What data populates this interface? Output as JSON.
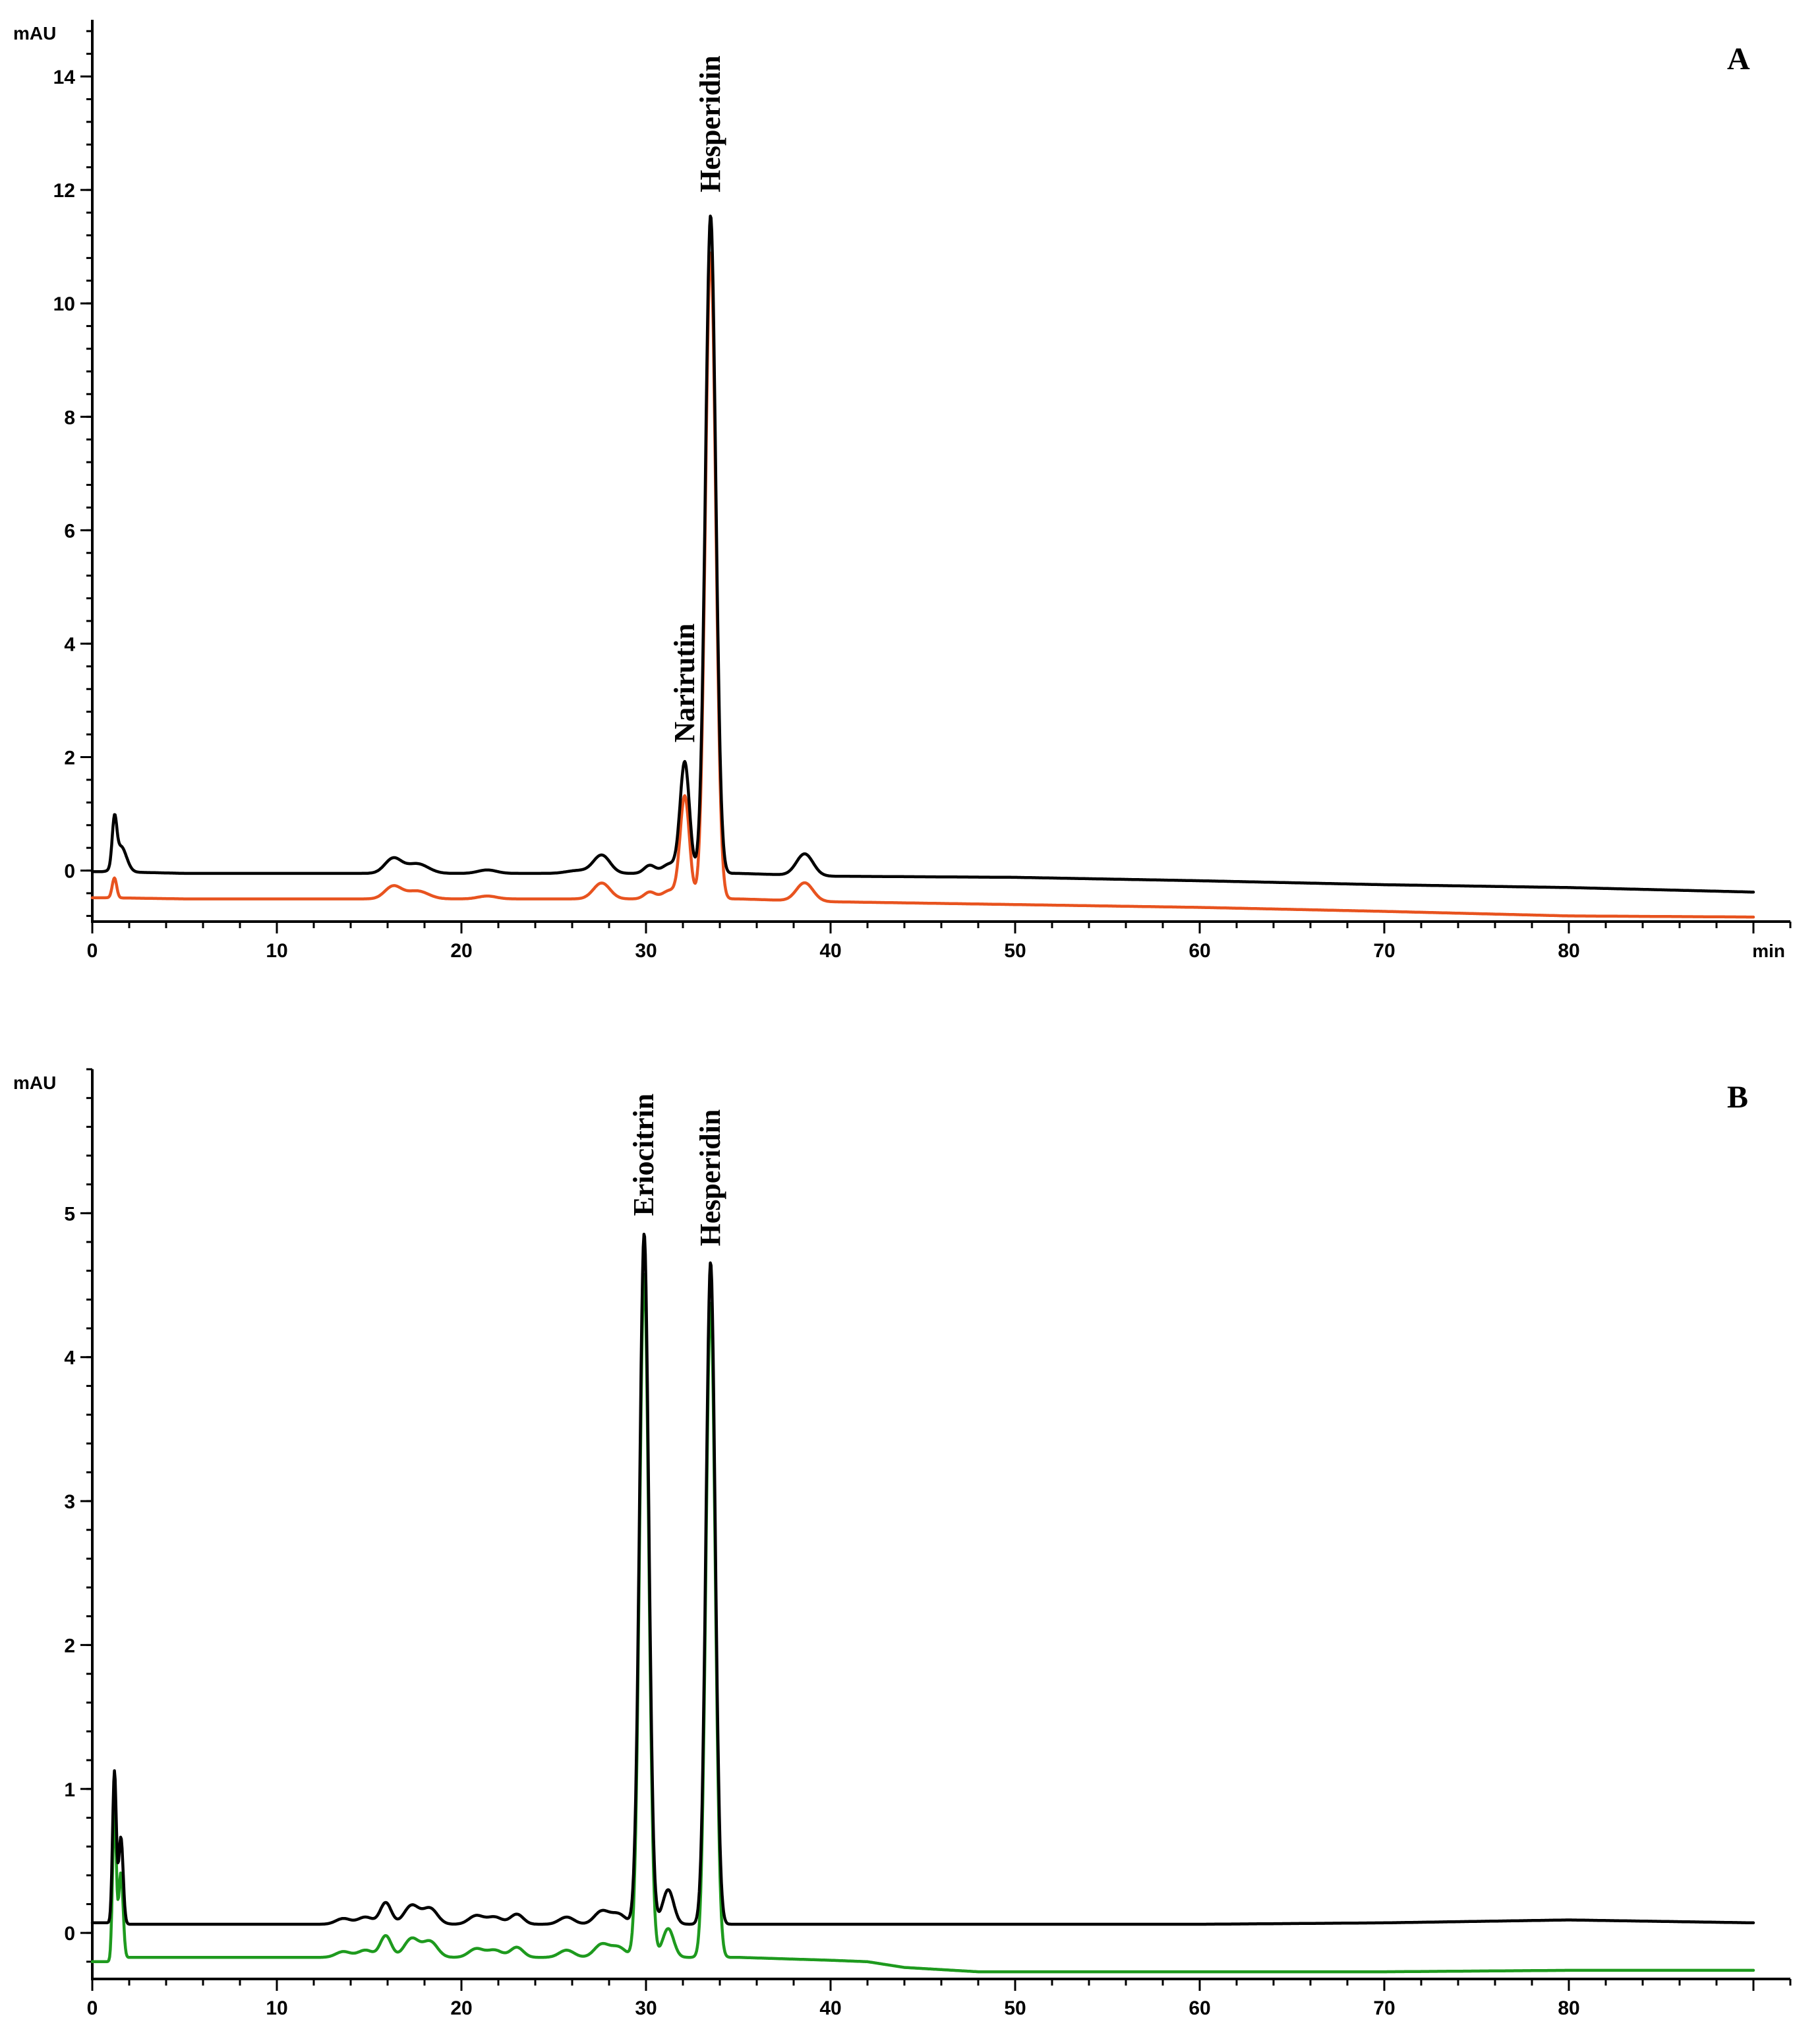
{
  "chart_data": [
    {
      "type": "line",
      "panel_label": "A",
      "xlabel": "min",
      "ylabel": "mAU",
      "xlim": [
        0,
        92
      ],
      "ylim": [
        -0.9,
        15
      ],
      "xticks": [
        0,
        10,
        20,
        30,
        40,
        50,
        60,
        70,
        80
      ],
      "yticks": [
        0,
        2,
        4,
        6,
        8,
        10,
        12,
        14
      ],
      "annotations": [
        {
          "text": "Narirutin",
          "x": 32.1,
          "y": 2.0
        },
        {
          "text": "Hesperidin",
          "x": 33.5,
          "y": 11.7
        }
      ],
      "series": [
        {
          "color": "#000000",
          "baseline": [
            [
              0,
              -0.02
            ],
            [
              1.0,
              -0.02
            ],
            [
              5,
              -0.05
            ],
            [
              10,
              -0.05
            ],
            [
              15,
              -0.05
            ],
            [
              20,
              -0.05
            ],
            [
              25,
              -0.05
            ],
            [
              30,
              -0.05
            ],
            [
              35,
              -0.05
            ],
            [
              40,
              -0.1
            ],
            [
              50,
              -0.12
            ],
            [
              60,
              -0.18
            ],
            [
              70,
              -0.25
            ],
            [
              80,
              -0.3
            ],
            [
              90,
              -0.38
            ]
          ],
          "peaks": [
            {
              "x": 1.2,
              "h": 0.78,
              "w": 0.12
            },
            {
              "x": 1.55,
              "h": 0.45,
              "w": 0.3
            },
            {
              "x": 16.3,
              "h": 0.26,
              "w": 0.45
            },
            {
              "x": 17.6,
              "h": 0.17,
              "w": 0.6
            },
            {
              "x": 21.4,
              "h": 0.06,
              "w": 0.5
            },
            {
              "x": 26.3,
              "h": 0.05,
              "w": 0.6
            },
            {
              "x": 27.6,
              "h": 0.32,
              "w": 0.45
            },
            {
              "x": 30.2,
              "h": 0.14,
              "w": 0.3
            },
            {
              "x": 31.3,
              "h": 0.17,
              "w": 0.4
            },
            {
              "x": 32.1,
              "h": 1.95,
              "w": 0.25
            },
            {
              "x": 33.5,
              "h": 11.6,
              "w": 0.28
            },
            {
              "x": 38.6,
              "h": 0.38,
              "w": 0.45
            }
          ]
        },
        {
          "color": "#e8531f",
          "baseline": [
            [
              0,
              -0.48
            ],
            [
              1.0,
              -0.48
            ],
            [
              5,
              -0.5
            ],
            [
              10,
              -0.5
            ],
            [
              15,
              -0.5
            ],
            [
              20,
              -0.5
            ],
            [
              25,
              -0.5
            ],
            [
              30,
              -0.5
            ],
            [
              35,
              -0.5
            ],
            [
              40,
              -0.55
            ],
            [
              50,
              -0.6
            ],
            [
              60,
              -0.65
            ],
            [
              70,
              -0.72
            ],
            [
              80,
              -0.8
            ],
            [
              90,
              -0.82
            ]
          ],
          "peaks": [
            {
              "x": 1.2,
              "h": 0.35,
              "w": 0.12
            },
            {
              "x": 16.3,
              "h": 0.22,
              "w": 0.45
            },
            {
              "x": 17.6,
              "h": 0.14,
              "w": 0.6
            },
            {
              "x": 21.4,
              "h": 0.05,
              "w": 0.5
            },
            {
              "x": 27.6,
              "h": 0.28,
              "w": 0.45
            },
            {
              "x": 30.2,
              "h": 0.12,
              "w": 0.3
            },
            {
              "x": 31.3,
              "h": 0.15,
              "w": 0.4
            },
            {
              "x": 32.1,
              "h": 1.8,
              "w": 0.25
            },
            {
              "x": 33.5,
              "h": 11.4,
              "w": 0.28
            },
            {
              "x": 38.6,
              "h": 0.32,
              "w": 0.45
            }
          ]
        }
      ]
    },
    {
      "type": "line",
      "panel_label": "B",
      "xlabel": "",
      "ylabel": "mAU",
      "xlim": [
        0,
        92
      ],
      "ylim": [
        -0.32,
        6.0
      ],
      "xticks": [
        0,
        10,
        20,
        30,
        40,
        50,
        60,
        70,
        80
      ],
      "yticks": [
        0,
        1,
        2,
        3,
        4,
        5
      ],
      "annotations": [
        {
          "text": "Eriocitrin",
          "x": 29.9,
          "y": 4.88
        },
        {
          "text": "Hesperidin",
          "x": 33.5,
          "y": 4.67
        }
      ],
      "series": [
        {
          "color": "#000000",
          "baseline": [
            [
              0,
              0.07
            ],
            [
              1.0,
              0.07
            ],
            [
              2,
              0.06
            ],
            [
              5,
              0.06
            ],
            [
              10,
              0.06
            ],
            [
              15,
              0.06
            ],
            [
              20,
              0.06
            ],
            [
              25,
              0.06
            ],
            [
              30,
              0.06
            ],
            [
              35,
              0.06
            ],
            [
              40,
              0.06
            ],
            [
              50,
              0.06
            ],
            [
              60,
              0.06
            ],
            [
              70,
              0.07
            ],
            [
              80,
              0.09
            ],
            [
              90,
              0.07
            ]
          ],
          "peaks": [
            {
              "x": 1.2,
              "h": 1.05,
              "w": 0.1
            },
            {
              "x": 1.55,
              "h": 0.6,
              "w": 0.12
            },
            {
              "x": 13.6,
              "h": 0.04,
              "w": 0.4
            },
            {
              "x": 14.8,
              "h": 0.05,
              "w": 0.4
            },
            {
              "x": 15.9,
              "h": 0.15,
              "w": 0.3
            },
            {
              "x": 17.3,
              "h": 0.13,
              "w": 0.4
            },
            {
              "x": 18.3,
              "h": 0.11,
              "w": 0.4
            },
            {
              "x": 20.8,
              "h": 0.06,
              "w": 0.4
            },
            {
              "x": 21.8,
              "h": 0.05,
              "w": 0.4
            },
            {
              "x": 23.0,
              "h": 0.07,
              "w": 0.35
            },
            {
              "x": 25.7,
              "h": 0.05,
              "w": 0.4
            },
            {
              "x": 27.6,
              "h": 0.09,
              "w": 0.4
            },
            {
              "x": 28.5,
              "h": 0.07,
              "w": 0.4
            },
            {
              "x": 29.9,
              "h": 4.8,
              "w": 0.25
            },
            {
              "x": 31.2,
              "h": 0.24,
              "w": 0.3
            },
            {
              "x": 33.5,
              "h": 4.6,
              "w": 0.25
            }
          ]
        },
        {
          "color": "#1e9a1e",
          "baseline": [
            [
              0,
              -0.2
            ],
            [
              1.0,
              -0.2
            ],
            [
              2,
              -0.17
            ],
            [
              5,
              -0.17
            ],
            [
              10,
              -0.17
            ],
            [
              15,
              -0.17
            ],
            [
              20,
              -0.17
            ],
            [
              25,
              -0.17
            ],
            [
              30,
              -0.17
            ],
            [
              35,
              -0.17
            ],
            [
              40,
              -0.19
            ],
            [
              42,
              -0.2
            ],
            [
              44,
              -0.24
            ],
            [
              48,
              -0.27
            ],
            [
              50,
              -0.27
            ],
            [
              60,
              -0.27
            ],
            [
              70,
              -0.27
            ],
            [
              80,
              -0.26
            ],
            [
              90,
              -0.26
            ]
          ],
          "peaks": [
            {
              "x": 1.2,
              "h": 1.05,
              "w": 0.1
            },
            {
              "x": 1.55,
              "h": 0.6,
              "w": 0.12
            },
            {
              "x": 13.6,
              "h": 0.04,
              "w": 0.4
            },
            {
              "x": 14.8,
              "h": 0.05,
              "w": 0.4
            },
            {
              "x": 15.9,
              "h": 0.15,
              "w": 0.3
            },
            {
              "x": 17.3,
              "h": 0.13,
              "w": 0.4
            },
            {
              "x": 18.3,
              "h": 0.11,
              "w": 0.4
            },
            {
              "x": 20.8,
              "h": 0.06,
              "w": 0.4
            },
            {
              "x": 21.8,
              "h": 0.05,
              "w": 0.4
            },
            {
              "x": 23.0,
              "h": 0.07,
              "w": 0.35
            },
            {
              "x": 25.7,
              "h": 0.05,
              "w": 0.4
            },
            {
              "x": 27.6,
              "h": 0.09,
              "w": 0.4
            },
            {
              "x": 28.5,
              "h": 0.07,
              "w": 0.4
            },
            {
              "x": 29.9,
              "h": 4.75,
              "w": 0.25
            },
            {
              "x": 31.2,
              "h": 0.2,
              "w": 0.3
            },
            {
              "x": 33.5,
              "h": 4.55,
              "w": 0.25
            }
          ]
        }
      ]
    }
  ]
}
